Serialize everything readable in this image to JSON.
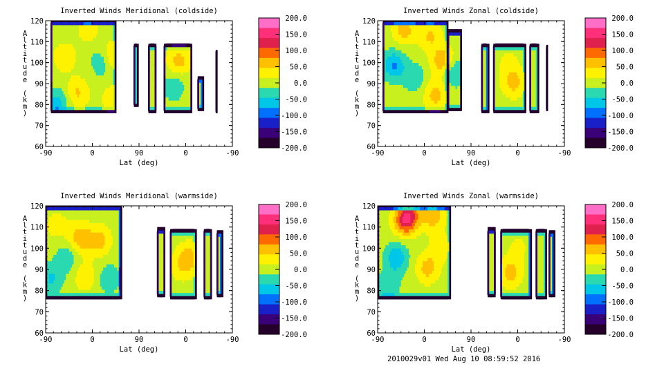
{
  "footer": "2010029v01 Wed Aug 10 08:59:52 2016",
  "colorbar": {
    "ticks": [
      "200.0",
      "150.0",
      "100.0",
      "50.0",
      "0.0",
      "-50.0",
      "-100.0",
      "-150.0",
      "-200.0"
    ],
    "colors": [
      "#ff6ec7",
      "#ff2f7a",
      "#e0204d",
      "#ff6a00",
      "#ffc000",
      "#fff200",
      "#c8f01e",
      "#2ad9b0",
      "#00c6e8",
      "#0070ff",
      "#1a20c8",
      "#3a0078",
      "#25002a"
    ]
  },
  "chart_data": [
    {
      "type": "heatmap",
      "title": "Inverted Winds Meridional (coldside)",
      "xlabel": "Lat (deg)",
      "ylabel": "Altitude (km)",
      "xticks": [
        "-90",
        "0",
        "90",
        "0",
        "-90"
      ],
      "yticks": [
        "60",
        "70",
        "80",
        "90",
        "100",
        "110",
        "120"
      ],
      "ylim": [
        60,
        120
      ],
      "colorbar_range": [
        -200,
        200
      ],
      "bands": [
        {
          "x0": -80,
          "x1": 45,
          "y0": 76,
          "y1": 120
        },
        {
          "x0": 80,
          "x1": 88,
          "y0": 79,
          "y1": 109
        },
        {
          "x0": 108,
          "x1": 123,
          "y0": 76,
          "y1": 109
        },
        {
          "x0": 138,
          "x1": 192,
          "y0": 76,
          "y1": 109
        },
        {
          "x0": 203,
          "x1": 213,
          "y0": 77,
          "y1": 93
        },
        {
          "x0": 238,
          "x1": 240,
          "y0": 76,
          "y1": 106
        }
      ],
      "hotspots": [
        {
          "x": -55,
          "y": 102,
          "v": 40
        },
        {
          "x": -30,
          "y": 85,
          "v": 50
        },
        {
          "x": 20,
          "y": 100,
          "v": -60
        },
        {
          "x": 35,
          "y": 102,
          "v": 70
        },
        {
          "x": -10,
          "y": 115,
          "v": 30
        },
        {
          "x": 165,
          "y": 100,
          "v": 60
        },
        {
          "x": 155,
          "y": 88,
          "v": -40
        },
        {
          "x": -70,
          "y": 80,
          "v": -60
        },
        {
          "x": 40,
          "y": 82,
          "v": 40
        }
      ]
    },
    {
      "type": "heatmap",
      "title": "Inverted Winds Zonal (coldside)",
      "xlabel": "Lat (deg)",
      "ylabel": "Altitude (km)",
      "xticks": [
        "-90",
        "0",
        "90",
        "0",
        "-90"
      ],
      "yticks": [
        "60",
        "70",
        "80",
        "90",
        "100",
        "110",
        "120"
      ],
      "ylim": [
        60,
        120
      ],
      "colorbar_range": [
        -200,
        200
      ],
      "bands": [
        {
          "x0": -80,
          "x1": 45,
          "y0": 76,
          "y1": 120
        },
        {
          "x0": 45,
          "x1": 72,
          "y0": 77,
          "y1": 115
        },
        {
          "x0": 110,
          "x1": 123,
          "y0": 76,
          "y1": 109
        },
        {
          "x0": 133,
          "x1": 195,
          "y0": 76,
          "y1": 109
        },
        {
          "x0": 203,
          "x1": 220,
          "y0": 76,
          "y1": 109
        },
        {
          "x0": 235,
          "x1": 237,
          "y0": 77,
          "y1": 108
        }
      ],
      "hotspots": [
        {
          "x": -60,
          "y": 98,
          "v": -80
        },
        {
          "x": -40,
          "y": 115,
          "v": 60
        },
        {
          "x": 10,
          "y": 112,
          "v": 50
        },
        {
          "x": 20,
          "y": 84,
          "v": 60
        },
        {
          "x": 35,
          "y": 100,
          "v": 80
        },
        {
          "x": 170,
          "y": 90,
          "v": 60
        },
        {
          "x": 160,
          "y": 100,
          "v": 20
        },
        {
          "x": -20,
          "y": 92,
          "v": -40
        },
        {
          "x": 55,
          "y": 95,
          "v": -60
        }
      ]
    },
    {
      "type": "heatmap",
      "title": "Inverted Winds Meridional (warmside)",
      "xlabel": "Lat (deg)",
      "ylabel": "Altitude (km)",
      "xticks": [
        "-90",
        "0",
        "90",
        "0",
        "-90"
      ],
      "yticks": [
        "60",
        "70",
        "80",
        "90",
        "100",
        "110",
        "120"
      ],
      "ylim": [
        60,
        120
      ],
      "colorbar_range": [
        -200,
        200
      ],
      "bands": [
        {
          "x0": -90,
          "x1": 55,
          "y0": 76,
          "y1": 120
        },
        {
          "x0": 125,
          "x1": 140,
          "y0": 77,
          "y1": 109
        },
        {
          "x0": 150,
          "x1": 200,
          "y0": 76,
          "y1": 109
        },
        {
          "x0": 215,
          "x1": 230,
          "y0": 76,
          "y1": 109
        },
        {
          "x0": 240,
          "x1": 250,
          "y0": 77,
          "y1": 108
        }
      ],
      "hotspots": [
        {
          "x": -25,
          "y": 104,
          "v": 70
        },
        {
          "x": 12,
          "y": 103,
          "v": 60
        },
        {
          "x": -15,
          "y": 86,
          "v": 40
        },
        {
          "x": -70,
          "y": 110,
          "v": 30
        },
        {
          "x": -50,
          "y": 95,
          "v": -40
        },
        {
          "x": 185,
          "y": 95,
          "v": 60
        },
        {
          "x": 170,
          "y": 90,
          "v": 30
        },
        {
          "x": 30,
          "y": 85,
          "v": -40
        },
        {
          "x": -80,
          "y": 85,
          "v": -50
        }
      ]
    },
    {
      "type": "heatmap",
      "title": "Inverted Winds Zonal (warmside)",
      "xlabel": "Lat (deg)",
      "ylabel": "Altitude (km)",
      "xticks": [
        "-90",
        "0",
        "90",
        "0",
        "-90"
      ],
      "yticks": [
        "60",
        "70",
        "80",
        "90",
        "100",
        "110",
        "120"
      ],
      "ylim": [
        60,
        120
      ],
      "colorbar_range": [
        -200,
        200
      ],
      "bands": [
        {
          "x0": -90,
          "x1": 50,
          "y0": 76,
          "y1": 120
        },
        {
          "x0": 122,
          "x1": 137,
          "y0": 77,
          "y1": 109
        },
        {
          "x0": 147,
          "x1": 205,
          "y0": 76,
          "y1": 109
        },
        {
          "x0": 215,
          "x1": 235,
          "y0": 76,
          "y1": 109
        },
        {
          "x0": 240,
          "x1": 250,
          "y0": 77,
          "y1": 108
        }
      ],
      "hotspots": [
        {
          "x": -55,
          "y": 95,
          "v": -70
        },
        {
          "x": -30,
          "y": 115,
          "v": 80
        },
        {
          "x": 15,
          "y": 115,
          "v": 70
        },
        {
          "x": 5,
          "y": 90,
          "v": 60
        },
        {
          "x": -40,
          "y": 112,
          "v": 90
        },
        {
          "x": 165,
          "y": 88,
          "v": 60
        },
        {
          "x": 180,
          "y": 100,
          "v": 20
        },
        {
          "x": 30,
          "y": 100,
          "v": 30
        },
        {
          "x": -70,
          "y": 82,
          "v": -40
        }
      ]
    }
  ]
}
